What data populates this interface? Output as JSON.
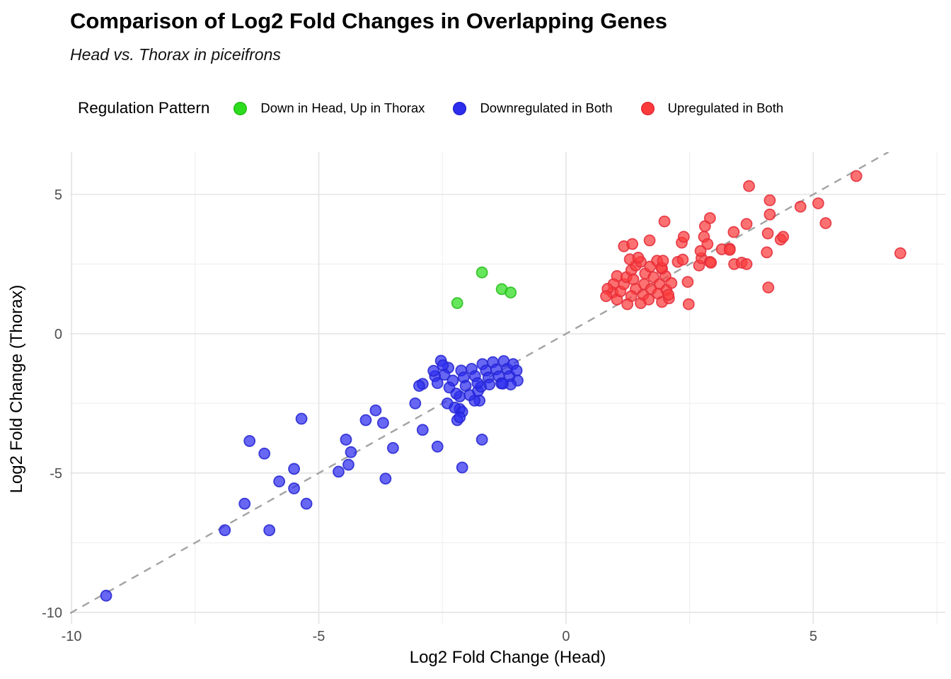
{
  "title": "Comparison of Log2 Fold Changes in Overlapping Genes",
  "subtitle": "Head vs. Thorax in piceifrons",
  "legend": {
    "title": "Regulation Pattern",
    "items": [
      {
        "label": "Down in Head, Up in Thorax",
        "fill": "#2cdd1e",
        "stroke": "#27bd1a"
      },
      {
        "label": "Downregulated in Both",
        "fill": "#2d2dee",
        "stroke": "#2424d2"
      },
      {
        "label": "Upregulated in Both",
        "fill": "#fb3b3b",
        "stroke": "#e42b38"
      }
    ]
  },
  "chart_data": {
    "type": "scatter",
    "title": "Comparison of Log2 Fold Changes in Overlapping Genes",
    "subtitle": "Head vs. Thorax in piceifrons",
    "xlabel": "Log2 Fold Change (Head)",
    "ylabel": "Log2 Fold Change (Thorax)",
    "xlim": [
      -10.03,
      7.67
    ],
    "ylim": [
      -10.41,
      6.52
    ],
    "x_ticks": [
      -10,
      -5,
      0,
      5
    ],
    "y_ticks": [
      5,
      0,
      -5,
      -10
    ],
    "x_minor": [
      -7.5,
      -2.5,
      2.5,
      7.5
    ],
    "y_minor": [
      2.5,
      -2.5,
      -7.5
    ],
    "grid": true,
    "legend_position": "top",
    "reference_line": {
      "type": "identity y=x",
      "style": "dashed",
      "color": "#a3a3a3"
    },
    "point_radius_px": 7.5,
    "series": [
      {
        "name": "Down in Head, Up in Thorax",
        "fill": "#2cdd1e",
        "stroke": "#27bd1a",
        "points": [
          [
            -1.7,
            2.2
          ],
          [
            -1.3,
            1.6
          ],
          [
            -1.12,
            1.48
          ],
          [
            -2.2,
            1.1
          ]
        ]
      },
      {
        "name": "Downregulated in Both",
        "fill": "#2d2dee",
        "stroke": "#2424d2",
        "points": [
          [
            -9.3,
            -9.4
          ],
          [
            -6.9,
            -7.05
          ],
          [
            -6.0,
            -7.05
          ],
          [
            -6.5,
            -6.1
          ],
          [
            -5.8,
            -5.3
          ],
          [
            -5.5,
            -5.55
          ],
          [
            -5.25,
            -6.1
          ],
          [
            -6.1,
            -4.3
          ],
          [
            -6.4,
            -3.85
          ],
          [
            -5.5,
            -4.85
          ],
          [
            -5.35,
            -3.05
          ],
          [
            -4.6,
            -4.95
          ],
          [
            -4.4,
            -4.7
          ],
          [
            -4.35,
            -4.25
          ],
          [
            -4.45,
            -3.8
          ],
          [
            -3.65,
            -5.2
          ],
          [
            -4.05,
            -3.1
          ],
          [
            -3.85,
            -2.75
          ],
          [
            -3.7,
            -3.2
          ],
          [
            -3.5,
            -4.1
          ],
          [
            -3.05,
            -2.5
          ],
          [
            -2.9,
            -3.45
          ],
          [
            -2.6,
            -4.05
          ],
          [
            -2.1,
            -4.8
          ],
          [
            -1.7,
            -3.8
          ],
          [
            -2.2,
            -3.1
          ],
          [
            -2.15,
            -2.7
          ],
          [
            -2.4,
            -2.5
          ],
          [
            -1.75,
            -2.4
          ],
          [
            -2.15,
            -2.25
          ],
          [
            -2.25,
            -2.65
          ],
          [
            -2.1,
            -2.8
          ],
          [
            -2.15,
            -3.0
          ],
          [
            -1.85,
            -2.4
          ],
          [
            -1.95,
            -2.2
          ],
          [
            -1.78,
            -2.05
          ],
          [
            -1.72,
            -1.9
          ],
          [
            -2.38,
            -1.22
          ],
          [
            -2.46,
            -1.47
          ],
          [
            -2.29,
            -1.68
          ],
          [
            -2.36,
            -1.93
          ],
          [
            -2.22,
            -2.15
          ],
          [
            -2.12,
            -1.32
          ],
          [
            -2.07,
            -1.57
          ],
          [
            -2.03,
            -1.87
          ],
          [
            -1.91,
            -1.26
          ],
          [
            -1.84,
            -1.52
          ],
          [
            -1.79,
            -1.77
          ],
          [
            -1.69,
            -1.09
          ],
          [
            -1.62,
            -1.32
          ],
          [
            -1.57,
            -1.57
          ],
          [
            -1.55,
            -1.82
          ],
          [
            -1.48,
            -1.02
          ],
          [
            -1.41,
            -1.28
          ],
          [
            -1.36,
            -1.53
          ],
          [
            -1.31,
            -1.78
          ],
          [
            -1.26,
            -0.98
          ],
          [
            -1.19,
            -1.26
          ],
          [
            -1.14,
            -1.52
          ],
          [
            -1.07,
            -1.09
          ],
          [
            -1.0,
            -1.32
          ],
          [
            -0.98,
            -1.68
          ],
          [
            -1.12,
            -1.82
          ],
          [
            -2.53,
            -0.97
          ],
          [
            -2.65,
            -1.52
          ],
          [
            -2.6,
            -1.77
          ],
          [
            -2.9,
            -1.8
          ],
          [
            -2.97,
            -1.87
          ],
          [
            -2.68,
            -1.33
          ],
          [
            -2.49,
            -1.13
          ],
          [
            -1.28,
            -1.79
          ]
        ]
      },
      {
        "name": "Upregulated in Both",
        "fill": "#fb3b3b",
        "stroke": "#e42b38",
        "points": [
          [
            1.03,
            2.07
          ],
          [
            0.96,
            1.78
          ],
          [
            0.94,
            1.48
          ],
          [
            1.03,
            1.23
          ],
          [
            1.1,
            1.52
          ],
          [
            1.17,
            1.78
          ],
          [
            1.22,
            2.03
          ],
          [
            1.32,
            2.28
          ],
          [
            1.41,
            2.45
          ],
          [
            1.51,
            2.58
          ],
          [
            1.36,
            1.95
          ],
          [
            1.41,
            1.61
          ],
          [
            1.32,
            1.35
          ],
          [
            1.24,
            1.06
          ],
          [
            1.51,
            1.1
          ],
          [
            1.56,
            1.4
          ],
          [
            1.58,
            1.78
          ],
          [
            1.6,
            2.16
          ],
          [
            1.7,
            2.41
          ],
          [
            1.77,
            2.03
          ],
          [
            1.72,
            1.61
          ],
          [
            1.67,
            1.23
          ],
          [
            1.89,
            1.78
          ],
          [
            1.86,
            1.44
          ],
          [
            1.94,
            1.14
          ],
          [
            2.03,
            1.57
          ],
          [
            2.08,
            1.27
          ],
          [
            0.84,
            1.61
          ],
          [
            0.81,
            1.35
          ],
          [
            1.29,
            2.67
          ],
          [
            1.46,
            2.73
          ],
          [
            1.84,
            2.62
          ],
          [
            1.94,
            2.33
          ],
          [
            2.01,
            2.07
          ],
          [
            2.13,
            1.82
          ],
          [
            1.93,
            2.37
          ],
          [
            1.96,
            2.62
          ],
          [
            2.26,
            2.58
          ],
          [
            2.36,
            2.66
          ],
          [
            2.69,
            2.45
          ],
          [
            2.74,
            2.71
          ],
          [
            2.91,
            2.58
          ],
          [
            2.46,
            1.86
          ],
          [
            2.48,
            1.06
          ],
          [
            2.07,
            1.4
          ],
          [
            3.4,
            2.5
          ],
          [
            3.55,
            2.55
          ],
          [
            3.65,
            2.5
          ],
          [
            2.93,
            2.55
          ],
          [
            3.15,
            3.03
          ],
          [
            3.31,
            3.05
          ],
          [
            4.06,
            2.92
          ],
          [
            4.09,
            1.66
          ],
          [
            6.76,
            2.89
          ],
          [
            1.17,
            3.14
          ],
          [
            1.34,
            3.22
          ],
          [
            1.69,
            3.35
          ],
          [
            1.99,
            4.03
          ],
          [
            2.34,
            3.27
          ],
          [
            2.38,
            3.48
          ],
          [
            2.79,
            3.48
          ],
          [
            2.86,
            3.22
          ],
          [
            2.81,
            3.86
          ],
          [
            2.91,
            4.15
          ],
          [
            3.31,
            3.01
          ],
          [
            3.39,
            3.65
          ],
          [
            3.65,
            3.94
          ],
          [
            4.08,
            3.6
          ],
          [
            4.34,
            3.38
          ],
          [
            4.39,
            3.48
          ],
          [
            2.72,
            2.97
          ],
          [
            3.7,
            5.3
          ],
          [
            5.87,
            5.66
          ],
          [
            4.12,
            4.79
          ],
          [
            4.74,
            4.56
          ],
          [
            5.1,
            4.68
          ],
          [
            5.25,
            3.97
          ],
          [
            4.12,
            4.28
          ]
        ]
      }
    ]
  }
}
